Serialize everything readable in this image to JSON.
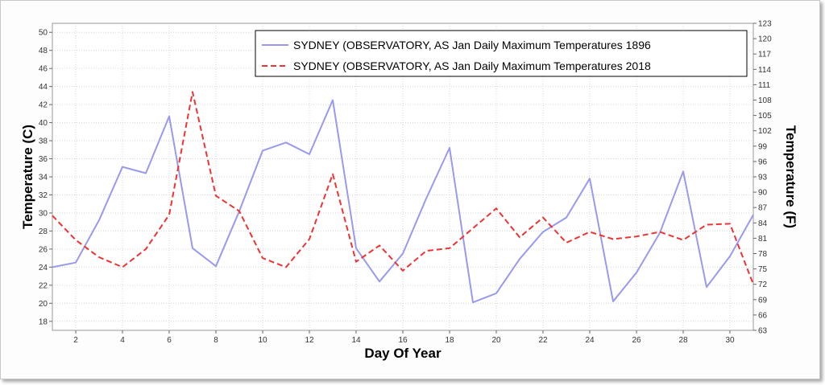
{
  "chart_data": {
    "type": "line",
    "xlabel": "Day Of Year",
    "ylabel": "Temperature (C)",
    "ylabel_right": "Temperature (F)",
    "xlim": [
      1,
      31
    ],
    "ylim": [
      17,
      51
    ],
    "ylim_right": [
      63,
      123
    ],
    "grid": true,
    "legend_position": "top-right",
    "x_ticks": [
      2,
      4,
      6,
      8,
      10,
      12,
      14,
      16,
      18,
      20,
      22,
      24,
      26,
      28,
      30
    ],
    "y_ticks": [
      18,
      20,
      22,
      24,
      26,
      28,
      30,
      32,
      34,
      36,
      38,
      40,
      42,
      44,
      46,
      48,
      50
    ],
    "y_ticks_right": [
      63,
      66,
      69,
      72,
      75,
      78,
      81,
      84,
      87,
      90,
      93,
      96,
      99,
      102,
      105,
      108,
      111,
      114,
      117,
      120,
      123
    ],
    "x": [
      1,
      2,
      3,
      4,
      5,
      6,
      7,
      8,
      9,
      10,
      11,
      12,
      13,
      14,
      15,
      16,
      17,
      18,
      19,
      20,
      21,
      22,
      23,
      24,
      25,
      26,
      27,
      28,
      29,
      30,
      31
    ],
    "series": [
      {
        "name": "SYDNEY (OBSERVATORY, AS  Jan  Daily Maximum Temperatures 1896",
        "color": "#9999ee",
        "dash": "solid",
        "values": [
          24.0,
          24.5,
          29.2,
          35.1,
          34.4,
          40.7,
          26.1,
          24.1,
          30.2,
          36.9,
          37.8,
          36.5,
          42.5,
          26.1,
          22.4,
          25.5,
          31.6,
          37.2,
          20.1,
          21.1,
          24.9,
          27.9,
          29.5,
          33.8,
          20.2,
          23.4,
          27.8,
          34.6,
          21.8,
          25.2,
          29.8
        ]
      },
      {
        "name": "SYDNEY (OBSERVATORY, AS  Jan  Daily Maximum Temperatures 2018",
        "color": "#ee3333",
        "dash": "dashed",
        "values": [
          29.7,
          27.0,
          25.1,
          24.0,
          26.0,
          29.8,
          43.4,
          31.9,
          30.2,
          25.0,
          24.0,
          27.1,
          34.3,
          24.6,
          26.4,
          23.6,
          25.8,
          26.1,
          28.3,
          30.5,
          27.3,
          29.5,
          26.7,
          27.9,
          27.1,
          27.4,
          27.9,
          27.0,
          28.7,
          28.8,
          22.1
        ]
      }
    ]
  }
}
